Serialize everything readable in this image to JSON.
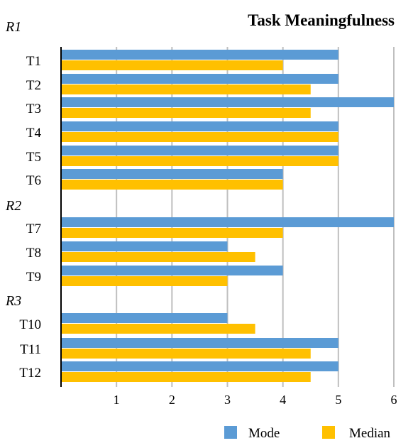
{
  "chart_data": {
    "type": "bar",
    "orientation": "horizontal",
    "title": "Task Meaningfulness",
    "xlabel": "",
    "ylabel": "",
    "xlim": [
      0,
      6
    ],
    "x_ticks": [
      "1",
      "2",
      "3",
      "4",
      "5",
      "6"
    ],
    "grid": "vertical",
    "legend": "bottom-right",
    "groups": [
      {
        "label": "R1",
        "categories": [
          "T1",
          "T2",
          "T3",
          "T4",
          "T5",
          "T6"
        ]
      },
      {
        "label": "R2",
        "categories": [
          "T7",
          "T8",
          "T9"
        ]
      },
      {
        "label": "R3",
        "categories": [
          "T10",
          "T11",
          "T12"
        ]
      }
    ],
    "categories": [
      "T1",
      "T2",
      "T3",
      "T4",
      "T5",
      "T6",
      "T7",
      "T8",
      "T9",
      "T10",
      "T11",
      "T12"
    ],
    "series": [
      {
        "name": "Mode",
        "color": "#5b9bd5",
        "values": [
          5,
          5,
          6,
          5,
          5,
          4,
          6,
          3,
          4,
          3,
          5,
          5
        ]
      },
      {
        "name": "Median",
        "color": "#ffc000",
        "values": [
          4,
          4.5,
          4.5,
          5,
          5,
          4,
          4,
          3.5,
          3,
          3.5,
          4.5,
          4.5
        ]
      }
    ]
  }
}
